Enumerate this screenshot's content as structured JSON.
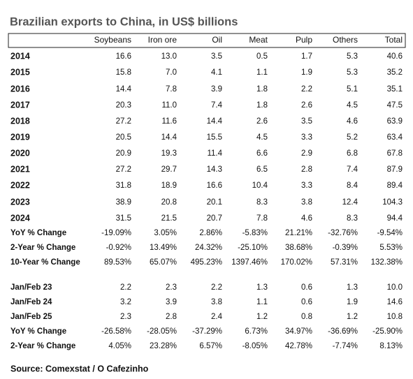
{
  "header": {
    "title": "Brazilian exports to China, in US$ billions"
  },
  "table": {
    "columns": [
      "Soybeans",
      "Iron ore",
      "Oil",
      "Meat",
      "Pulp",
      "Others",
      "Total"
    ],
    "rows": [
      {
        "label": "2014",
        "cells": [
          "16.6",
          "13.0",
          "3.5",
          "0.5",
          "1.7",
          "5.3",
          "40.6"
        ]
      },
      {
        "label": "2015",
        "cells": [
          "15.8",
          "7.0",
          "4.1",
          "1.1",
          "1.9",
          "5.3",
          "35.2"
        ]
      },
      {
        "label": "2016",
        "cells": [
          "14.4",
          "7.8",
          "3.9",
          "1.8",
          "2.2",
          "5.1",
          "35.1"
        ]
      },
      {
        "label": "2017",
        "cells": [
          "20.3",
          "11.0",
          "7.4",
          "1.8",
          "2.6",
          "4.5",
          "47.5"
        ]
      },
      {
        "label": "2018",
        "cells": [
          "27.2",
          "11.6",
          "14.4",
          "2.6",
          "3.5",
          "4.6",
          "63.9"
        ]
      },
      {
        "label": "2019",
        "cells": [
          "20.5",
          "14.4",
          "15.5",
          "4.5",
          "3.3",
          "5.2",
          "63.4"
        ]
      },
      {
        "label": "2020",
        "cells": [
          "20.9",
          "19.3",
          "11.4",
          "6.6",
          "2.9",
          "6.8",
          "67.8"
        ]
      },
      {
        "label": "2021",
        "cells": [
          "27.2",
          "29.7",
          "14.3",
          "6.5",
          "2.8",
          "7.4",
          "87.9"
        ]
      },
      {
        "label": "2022",
        "cells": [
          "31.8",
          "18.9",
          "16.6",
          "10.4",
          "3.3",
          "8.4",
          "89.4"
        ]
      },
      {
        "label": "2023",
        "cells": [
          "38.9",
          "20.8",
          "20.1",
          "8.3",
          "3.8",
          "12.4",
          "104.3"
        ]
      },
      {
        "label": "2024",
        "cells": [
          "31.5",
          "21.5",
          "20.7",
          "7.8",
          "4.6",
          "8.3",
          "94.4"
        ]
      },
      {
        "label": "YoY % Change",
        "cells": [
          "-19.09%",
          "3.05%",
          "2.86%",
          "-5.83%",
          "21.21%",
          "-32.76%",
          "-9.54%"
        ]
      },
      {
        "label": "2-Year % Change",
        "cells": [
          "-0.92%",
          "13.49%",
          "24.32%",
          "-25.10%",
          "38.68%",
          "-0.39%",
          "5.53%"
        ]
      },
      {
        "label": "10-Year % Change",
        "cells": [
          "89.53%",
          "65.07%",
          "495.23%",
          "1397.46%",
          "170.02%",
          "57.31%",
          "132.38%"
        ]
      }
    ]
  },
  "table2": {
    "rows": [
      {
        "label": "Jan/Feb 23",
        "cells": [
          "2.2",
          "2.3",
          "2.2",
          "1.3",
          "0.6",
          "1.3",
          "10.0"
        ]
      },
      {
        "label": "Jan/Feb 24",
        "cells": [
          "3.2",
          "3.9",
          "3.8",
          "1.1",
          "0.6",
          "1.9",
          "14.6"
        ]
      },
      {
        "label": "Jan/Feb 25",
        "cells": [
          "2.3",
          "2.8",
          "2.4",
          "1.2",
          "0.8",
          "1.2",
          "10.8"
        ]
      },
      {
        "label": "YoY % Change",
        "cells": [
          "-26.58%",
          "-28.05%",
          "-37.29%",
          "6.73%",
          "34.97%",
          "-36.69%",
          "-25.90%"
        ]
      },
      {
        "label": "2-Year % Change",
        "cells": [
          "4.05%",
          "23.28%",
          "6.57%",
          "-8.05%",
          "42.78%",
          "-7.74%",
          "8.13%"
        ]
      }
    ]
  },
  "source": "Source: Comexstat / O Cafezinho"
}
